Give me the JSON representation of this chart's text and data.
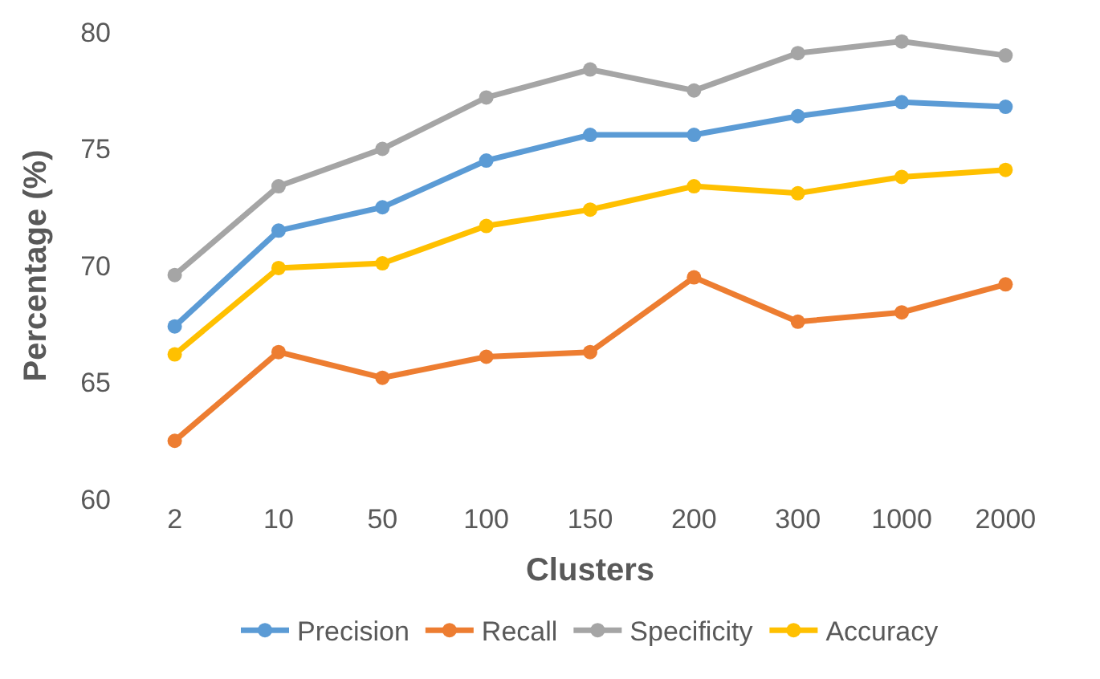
{
  "chart_data": {
    "type": "line",
    "xlabel": "Clusters",
    "ylabel": "Percentage (%)",
    "categories": [
      "2",
      "10",
      "50",
      "100",
      "150",
      "200",
      "300",
      "1000",
      "2000"
    ],
    "series": [
      {
        "name": "Precision",
        "color": "#5b9bd5",
        "values": [
          67.4,
          71.5,
          72.5,
          74.5,
          75.6,
          75.6,
          76.4,
          77.0,
          76.8
        ]
      },
      {
        "name": "Recall",
        "color": "#ed7d31",
        "values": [
          62.5,
          66.3,
          65.2,
          66.1,
          66.3,
          69.5,
          67.6,
          68.0,
          69.2
        ]
      },
      {
        "name": "Specificity",
        "color": "#a5a5a5",
        "values": [
          69.6,
          73.4,
          75.0,
          77.2,
          78.4,
          77.5,
          79.1,
          79.6,
          79.0
        ]
      },
      {
        "name": "Accuracy",
        "color": "#ffc000",
        "values": [
          66.2,
          69.9,
          70.1,
          71.7,
          72.4,
          73.4,
          73.1,
          73.8,
          74.1
        ]
      }
    ],
    "ylim": [
      60,
      80
    ],
    "yticks": [
      60,
      65,
      70,
      75,
      80
    ],
    "legend": "bottom",
    "marker": "circle",
    "line_style": "solid"
  }
}
